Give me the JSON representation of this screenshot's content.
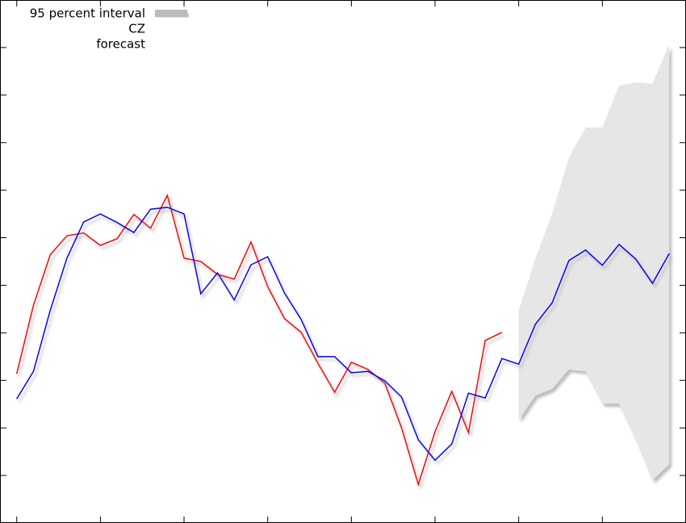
{
  "chart_data": {
    "type": "line",
    "x": [
      0,
      1,
      2,
      3,
      4,
      5,
      6,
      7,
      8,
      9,
      10,
      11,
      12,
      13,
      14,
      15,
      16,
      17,
      18,
      19,
      20,
      21,
      22,
      23,
      24,
      25,
      26,
      27,
      28,
      29,
      30,
      31,
      32,
      33,
      34,
      35,
      36,
      37,
      38,
      39
    ],
    "series": [
      {
        "name": "CZ",
        "color": "#ff0000",
        "values": [
          3.14,
          4.58,
          5.64,
          6.04,
          6.1,
          5.84,
          5.98,
          6.49,
          6.2,
          6.89,
          5.57,
          5.5,
          5.23,
          5.13,
          5.91,
          4.97,
          4.3,
          4.01,
          3.36,
          2.75,
          3.38,
          3.23,
          2.94,
          2.0,
          0.81,
          1.92,
          2.77,
          1.9,
          3.84,
          4.01,
          null,
          null,
          null,
          null,
          null,
          null,
          null,
          null,
          null,
          null
        ]
      },
      {
        "name": "forecast",
        "color": "#0000ff",
        "values": [
          2.61,
          3.19,
          4.47,
          5.57,
          6.33,
          6.5,
          6.32,
          6.11,
          6.6,
          6.64,
          6.5,
          4.82,
          5.26,
          4.69,
          5.43,
          5.6,
          4.84,
          4.28,
          3.5,
          3.5,
          3.16,
          3.19,
          2.99,
          2.65,
          1.75,
          1.32,
          1.66,
          2.73,
          2.63,
          3.46,
          3.34,
          4.18,
          4.63,
          5.52,
          5.74,
          5.42,
          5.86,
          5.55,
          5.04,
          5.67
        ]
      }
    ],
    "interval": {
      "name": "95 percent interval",
      "color": "#e6e6e6",
      "lower": [
        null,
        null,
        null,
        null,
        null,
        null,
        null,
        null,
        null,
        null,
        null,
        null,
        null,
        null,
        null,
        null,
        null,
        null,
        null,
        null,
        null,
        null,
        null,
        null,
        null,
        null,
        null,
        null,
        null,
        null,
        2.17,
        2.68,
        2.82,
        3.23,
        3.19,
        2.51,
        2.51,
        1.75,
        0.9,
        1.24
      ],
      "upper": [
        null,
        null,
        null,
        null,
        null,
        null,
        null,
        null,
        null,
        null,
        null,
        null,
        null,
        null,
        null,
        null,
        null,
        null,
        null,
        null,
        null,
        null,
        null,
        null,
        null,
        null,
        null,
        null,
        null,
        null,
        4.47,
        5.57,
        6.5,
        7.69,
        8.32,
        8.32,
        9.2,
        9.27,
        9.24,
        10.07
      ]
    },
    "xlim": [
      -1,
      40
    ],
    "xticks": [
      0,
      5,
      10,
      15,
      20,
      25,
      30,
      35
    ],
    "ylim": [
      0,
      11
    ],
    "yticks": [
      1,
      2,
      3,
      4,
      5,
      6,
      7,
      8,
      9,
      10
    ],
    "legend": "upper left"
  }
}
